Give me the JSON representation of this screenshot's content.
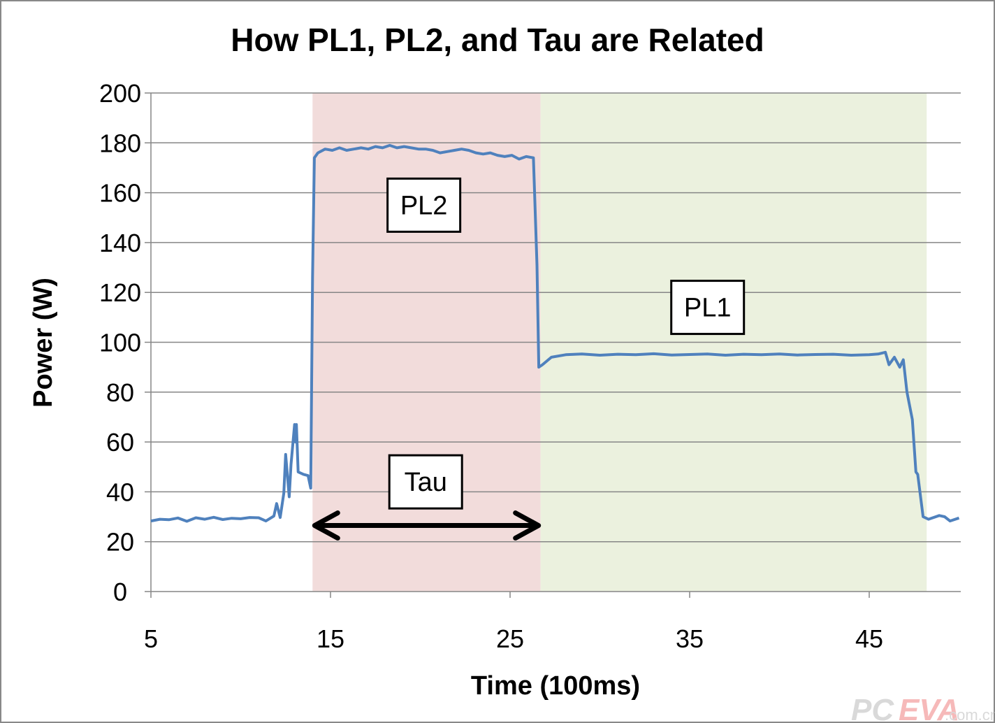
{
  "chart_data": {
    "type": "line",
    "title": "How PL1, PL2, and Tau are Related",
    "xlabel": "Time (100ms)",
    "ylabel": "Power (W)",
    "xlim": [
      5,
      50
    ],
    "ylim": [
      0,
      200
    ],
    "xticks": [
      5,
      15,
      25,
      35,
      45
    ],
    "yticks": [
      0,
      20,
      40,
      60,
      80,
      100,
      120,
      140,
      160,
      180,
      200
    ],
    "grid": "horizontal",
    "legend": "none",
    "line_color": "#4f81bd",
    "regions": [
      {
        "name": "pl2-region",
        "x": [
          14.0,
          26.7
        ],
        "color": "#f2dcdb"
      },
      {
        "name": "pl1-region",
        "x": [
          26.7,
          48.2
        ],
        "color": "#ebf1de"
      }
    ],
    "annotations": [
      {
        "text": "PL2",
        "x": 20.2,
        "y": 155
      },
      {
        "text": "PL1",
        "x": 36.0,
        "y": 114
      },
      {
        "text": "Tau",
        "x": 20.3,
        "y": 44
      }
    ],
    "arrow": {
      "x": [
        14.0,
        26.7
      ],
      "y": 26.5,
      "label": "Tau"
    },
    "series": [
      {
        "x": [
          5,
          5.5,
          6,
          6.5,
          7,
          7.5,
          8,
          8.5,
          9,
          9.5,
          10,
          10.5,
          11,
          11.4,
          11.85,
          12.0,
          12.2,
          12.4,
          12.5,
          12.7,
          12.8,
          13.0,
          13.05,
          13.1,
          13.2,
          13.5,
          13.75,
          13.9,
          14.0,
          14.1,
          14.3,
          14.7,
          15.1,
          15.5,
          15.9,
          16.3,
          16.7,
          17.1,
          17.5,
          17.9,
          18.3,
          18.7,
          19.1,
          19.5,
          19.9,
          20.3,
          20.7,
          21.1,
          21.5,
          21.9,
          22.3,
          22.7,
          23.1,
          23.5,
          23.9,
          24.3,
          24.7,
          25.1,
          25.5,
          25.9,
          26.3,
          26.5,
          26.6,
          26.8,
          27.3,
          28.1,
          29,
          30,
          31,
          32,
          33,
          34,
          35,
          36,
          37,
          38,
          39,
          40,
          41,
          42,
          43,
          44,
          45,
          45.5,
          45.9,
          46.1,
          46.4,
          46.7,
          46.9,
          47.1,
          47.4,
          47.6,
          47.7,
          48.0,
          48.3,
          48.9,
          49.2,
          49.5,
          50
        ],
        "y": [
          28.3,
          29,
          28.8,
          29.5,
          28.2,
          29.6,
          29,
          29.8,
          28.9,
          29.4,
          29.2,
          29.7,
          29.6,
          28.3,
          30.3,
          35.3,
          29.7,
          39.5,
          55,
          38,
          51,
          67,
          60,
          67,
          48,
          47,
          46.5,
          41.5,
          126,
          174,
          176,
          177.5,
          177,
          178,
          177,
          177.5,
          178,
          177.5,
          178.5,
          178,
          179,
          178,
          178.5,
          178,
          177.5,
          177.5,
          177,
          176,
          176.5,
          177,
          177.5,
          177,
          176,
          175.5,
          176,
          175,
          174.5,
          175,
          173.5,
          174.5,
          174,
          131,
          90,
          91,
          94,
          95,
          95.3,
          94.8,
          95.2,
          95,
          95.4,
          94.9,
          95.1,
          95.3,
          94.8,
          95.2,
          95,
          95.3,
          94.9,
          95.1,
          95.2,
          94.8,
          95,
          95.3,
          96,
          91,
          94,
          90,
          93,
          80,
          69,
          48,
          47,
          30,
          29,
          30.5,
          30,
          28.3,
          29.5
        ]
      }
    ],
    "watermark": "PCEVA.com.cn"
  }
}
